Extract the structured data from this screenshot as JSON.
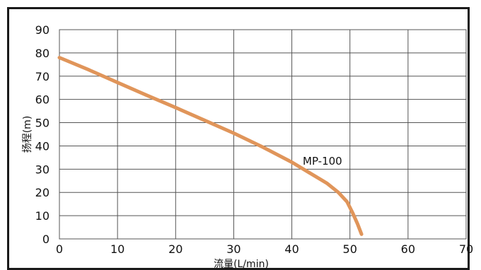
{
  "chart_data": {
    "type": "line",
    "title": "",
    "xlabel": "流量(L/min)",
    "ylabel": "扬程(m)",
    "xlim": [
      0,
      70
    ],
    "ylim": [
      0,
      90
    ],
    "xticks": [
      0,
      10,
      20,
      30,
      40,
      50,
      60,
      70
    ],
    "yticks": [
      0,
      10,
      20,
      30,
      40,
      50,
      60,
      70,
      80,
      90
    ],
    "grid": true,
    "series": [
      {
        "name": "MP-100",
        "color": "#e0955a",
        "x": [
          0,
          5,
          10,
          15,
          20,
          25,
          30,
          35,
          40,
          43,
          46,
          48,
          49.5,
          50.5,
          51.3,
          52
        ],
        "y": [
          78,
          72.8,
          67.3,
          61.8,
          56.5,
          51,
          45.5,
          39.5,
          33,
          28.5,
          24,
          20,
          16,
          11,
          6.5,
          2
        ]
      }
    ]
  }
}
